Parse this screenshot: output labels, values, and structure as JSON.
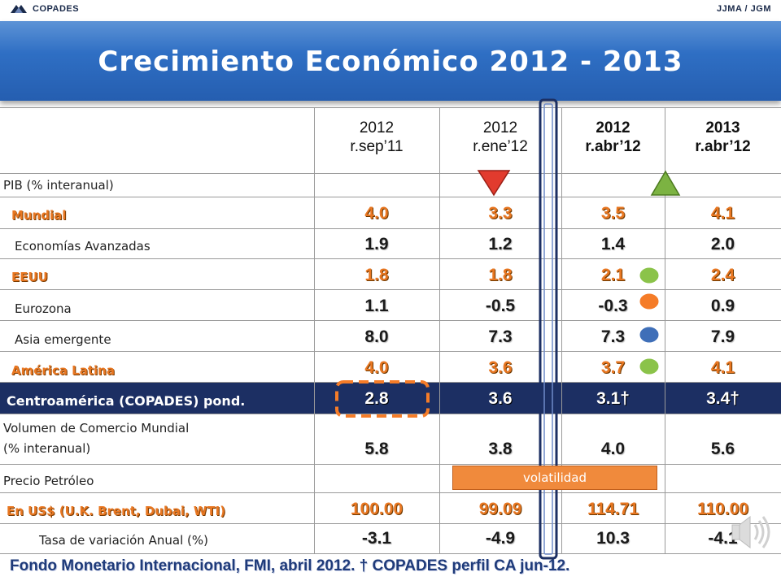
{
  "header": {
    "org": "COPADES",
    "authors": "JJMA / JGM",
    "title": "Crecimiento Económico 2012 - 2013"
  },
  "columns": [
    {
      "line1": "2012",
      "line2": "r.sep’11",
      "bold": false
    },
    {
      "line1": "2012",
      "line2": "r.ene’12",
      "bold": false
    },
    {
      "line1": "2012",
      "line2": "r.abr’12",
      "bold": true
    },
    {
      "line1": "2013",
      "line2": "r.abr’12",
      "bold": true
    }
  ],
  "rows": {
    "pib": "PIB (% interanual)",
    "mundial": {
      "label": "Mundial",
      "v": [
        "4.0",
        "3.3",
        "3.5",
        "4.1"
      ]
    },
    "avanzadas": {
      "label": "Economías Avanzadas",
      "v": [
        "1.9",
        "1.2",
        "1.4",
        "2.0"
      ]
    },
    "eeuu": {
      "label": "EEUU",
      "v": [
        "1.8",
        "1.8",
        "2.1",
        "2.4"
      ]
    },
    "eurozona": {
      "label": "Eurozona",
      "v": [
        "1.1",
        "-0.5",
        "-0.3",
        "0.9"
      ]
    },
    "asia": {
      "label": "Asia emergente",
      "v": [
        "8.0",
        "7.3",
        "7.3",
        "7.9"
      ]
    },
    "latam": {
      "label": "América Latina",
      "v": [
        "4.0",
        "3.6",
        "3.7",
        "4.1"
      ]
    },
    "centro": {
      "label": "Centroamérica (COPADES) pond.",
      "v": [
        "2.8",
        "3.6",
        "3.1†",
        "3.4†"
      ]
    },
    "comercio": {
      "label1": "Volumen de Comercio Mundial",
      "label2": "(% interanual)",
      "v": [
        "5.8",
        "3.8",
        "4.0",
        "5.6"
      ]
    },
    "petroleo": "Precio Petróleo",
    "usd": {
      "label": "En US$ (U.K. Brent, Dubai, WTI)",
      "v": [
        "100.00",
        "99.09",
        "114.71",
        "110.00"
      ]
    },
    "tasa": {
      "label": "Tasa de variación Anual (%)",
      "v": [
        "-3.1",
        "-4.9",
        "10.3",
        "-4.1"
      ]
    }
  },
  "annotations": {
    "volatilidad": "volatilidad",
    "marker_colors": {
      "down": "#e23b2e",
      "up": "#7cb342",
      "green": "#8bc34a",
      "orange": "#f57c28",
      "blue": "#3f6fb8"
    }
  },
  "footer": "Fondo Monetario Internacional, FMI, abril 2012. † COPADES perfil CA jun-12."
}
